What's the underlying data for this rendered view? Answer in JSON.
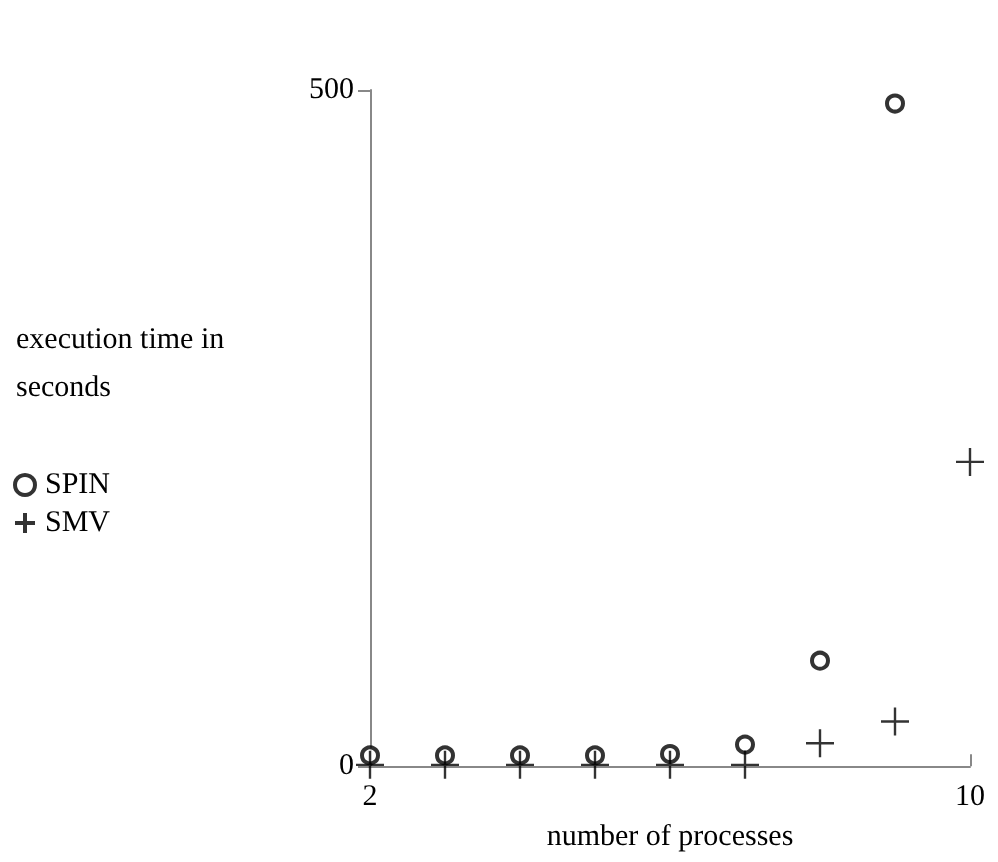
{
  "chart_data": {
    "type": "scatter",
    "xlabel": "number of processes",
    "ylabel": "execution time in seconds",
    "x": [
      2,
      3,
      4,
      5,
      6,
      7,
      8,
      9,
      10
    ],
    "series": [
      {
        "name": "SPIN",
        "color": "#000000",
        "marker": "circle",
        "values": [
          8,
          8,
          8,
          8,
          9,
          16,
          78,
          490,
          null
        ]
      },
      {
        "name": "SMV",
        "color": "#000000",
        "marker": "cross",
        "values": [
          1,
          1,
          1,
          1,
          1,
          1,
          17,
          33,
          225
        ]
      }
    ],
    "xlim": [
      2,
      10
    ],
    "xticks": [
      2,
      10
    ],
    "ylim": [
      0,
      500
    ],
    "yticks": [
      0,
      500
    ],
    "grid": false,
    "legend": "left"
  }
}
